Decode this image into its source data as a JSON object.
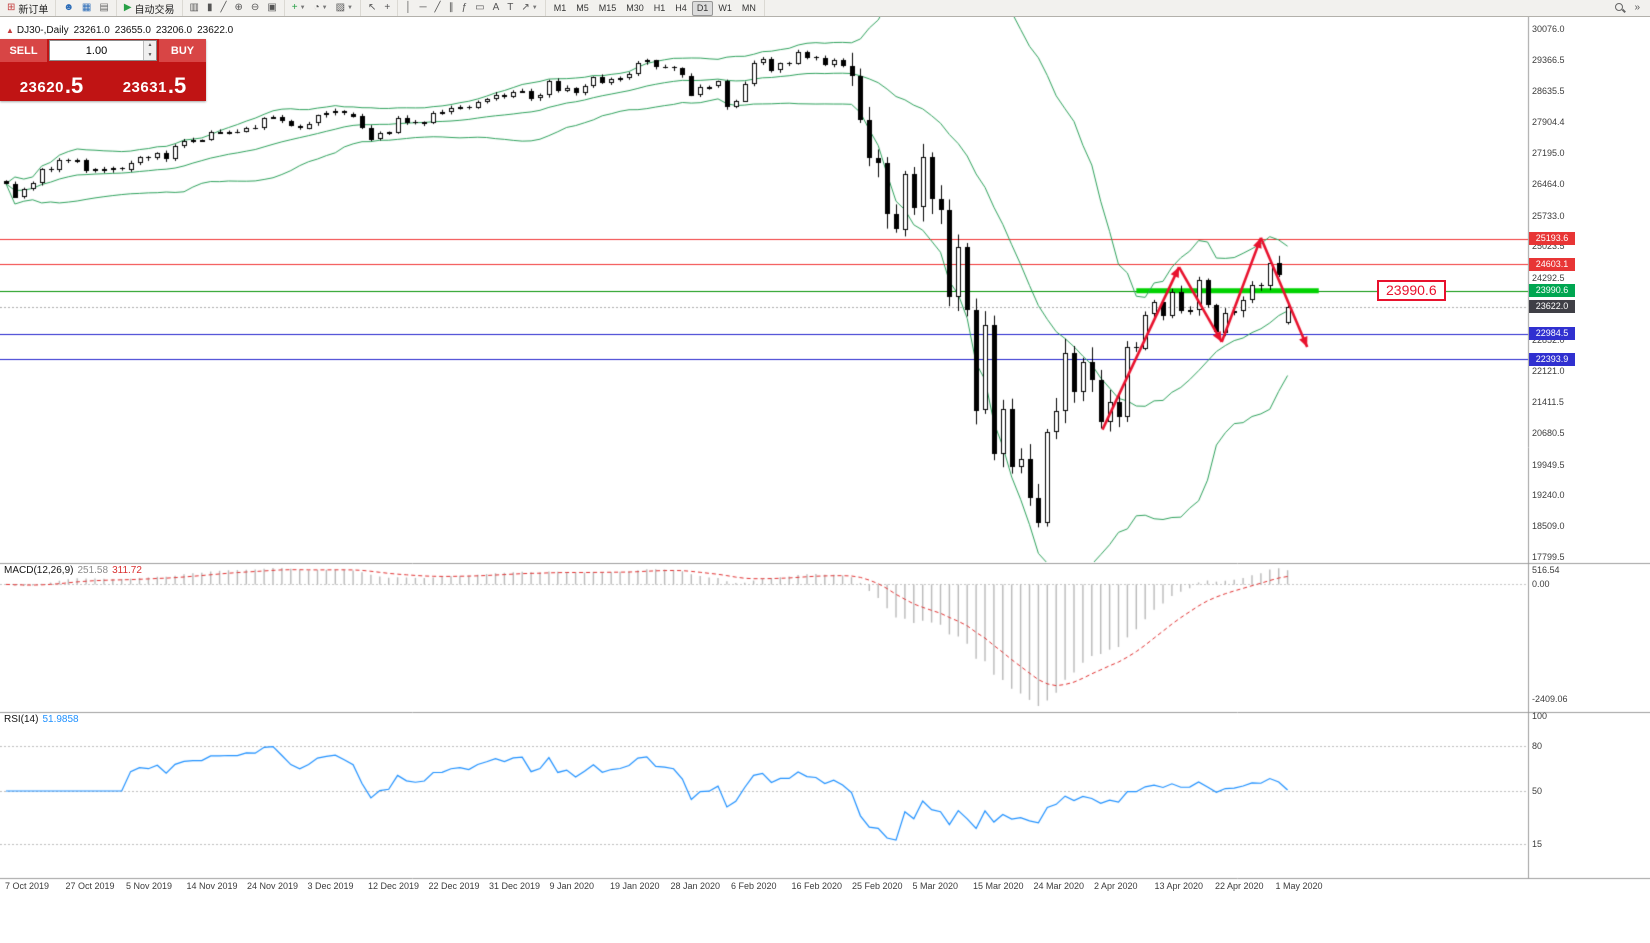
{
  "toolbar": {
    "groups": [
      {
        "items": [
          {
            "name": "new-order-button",
            "glyph": "⊞",
            "glyph_color": "#c43c3c",
            "label": "新订单"
          }
        ]
      },
      {
        "items": [
          {
            "name": "profile-icon",
            "glyph": "☻",
            "glyph_color": "#2b6cb8"
          },
          {
            "name": "market-watch-icon",
            "glyph": "▦",
            "glyph_color": "#2b6cb8"
          },
          {
            "name": "terminal-icon",
            "glyph": "▤",
            "glyph_color": "#6a6a6a"
          }
        ]
      },
      {
        "items": [
          {
            "name": "autotrade-button",
            "glyph": "▶",
            "glyph_color": "#27a046",
            "label": "自动交易"
          }
        ]
      },
      {
        "items": [
          {
            "name": "bar-chart-icon",
            "glyph": "▥"
          },
          {
            "name": "candlestick-chart-icon",
            "glyph": "▮"
          },
          {
            "name": "line-chart-icon",
            "glyph": "╱"
          },
          {
            "name": "zoom-in-icon",
            "glyph": "⊕"
          },
          {
            "name": "zoom-out-icon",
            "glyph": "⊖"
          },
          {
            "name": "tile-windows-icon",
            "glyph": "▣"
          }
        ]
      },
      {
        "items": [
          {
            "name": "indicators-button",
            "glyph": "+",
            "glyph_color": "#27a046",
            "dropdown": true
          },
          {
            "name": "periods-button",
            "glyph": "◔",
            "dropdown": true
          },
          {
            "name": "templates-button",
            "glyph": "▨",
            "dropdown": true
          }
        ]
      },
      {
        "items": [
          {
            "name": "cursor-icon",
            "glyph": "↖"
          },
          {
            "name": "crosshair-icon",
            "glyph": "+"
          }
        ]
      },
      {
        "items": [
          {
            "name": "vertical-line-icon",
            "glyph": "│"
          },
          {
            "name": "horizontal-line-icon",
            "glyph": "─"
          },
          {
            "name": "trendline-icon",
            "glyph": "╱"
          },
          {
            "name": "channel-icon",
            "glyph": "∥"
          },
          {
            "name": "fibonacci-icon",
            "glyph": "ƒ"
          },
          {
            "name": "shapes-icon",
            "glyph": "▭"
          },
          {
            "name": "text-icon",
            "glyph": "A"
          },
          {
            "name": "text-label-icon",
            "glyph": "T"
          },
          {
            "name": "arrow-objects-icon",
            "glyph": "↗",
            "dropdown": true
          }
        ]
      }
    ],
    "timeframes": [
      {
        "label": "M1"
      },
      {
        "label": "M5"
      },
      {
        "label": "M15"
      },
      {
        "label": "M30"
      },
      {
        "label": "H1"
      },
      {
        "label": "H4"
      },
      {
        "label": "D1",
        "active": true
      },
      {
        "label": "W1"
      },
      {
        "label": "MN"
      }
    ],
    "right_items": [
      {
        "name": "quick-search-icon",
        "type": "mag"
      },
      {
        "name": "toolbar-overflow-chevron",
        "glyph": "»"
      }
    ]
  },
  "chart_header": {
    "icon": "▲",
    "symbol": "DJ30-,Daily",
    "open": "23261.0",
    "high": "23655.0",
    "low": "23206.0",
    "close": "23622.0"
  },
  "trade_panel": {
    "sell_label": "SELL",
    "buy_label": "BUY",
    "volume": "1.00",
    "sell_price_main": "23620",
    "sell_price_frac": ".5",
    "buy_price_main": "23631",
    "buy_price_frac": ".5"
  },
  "price_axis": {
    "max": 30076.0,
    "min": 17799.5,
    "labels": [
      "30076.0",
      "29366.5",
      "28635.5",
      "27904.4",
      "27195.0",
      "26464.0",
      "25733.0",
      "25023.5",
      "24292.5",
      "23561.5",
      "22852.0",
      "22121.0",
      "21411.5",
      "20680.5",
      "19949.5",
      "19240.0",
      "18509.0",
      "17799.5"
    ]
  },
  "levels": [
    {
      "price": 25193.6,
      "label": "25193.6",
      "line_color": "#f03030",
      "badge_color": "#e83535",
      "style": "solid"
    },
    {
      "price": 24603.1,
      "label": "24603.1",
      "line_color": "#f03030",
      "badge_color": "#e83535",
      "style": "solid"
    },
    {
      "price": 23990.6,
      "label": "23990.6",
      "line_color": "#009000",
      "badge_color": "#00a651",
      "style": "solid"
    },
    {
      "price": 23622.0,
      "label": "23622.0",
      "line_color": "#ababab",
      "badge_color": "#3f3f46",
      "style": "dot"
    },
    {
      "price": 22984.5,
      "label": "22984.5",
      "line_color": "#2020cc",
      "badge_color": "#3030d0",
      "style": "solid"
    },
    {
      "price": 22393.9,
      "label": "22393.9",
      "line_color": "#2020cc",
      "badge_color": "#3030d0",
      "style": "solid"
    }
  ],
  "macd": {
    "label": "MACD(12,26,9)",
    "value_main": "251.58",
    "value_signal": "311.72",
    "axis": [
      "516.54",
      "0.00",
      "-2409.06"
    ],
    "max": 516.54,
    "min": -2409.06
  },
  "rsi": {
    "label": "RSI(14)",
    "value": "51.9858",
    "axis": [
      {
        "text": "100",
        "value": 100
      },
      {
        "text": "80",
        "value": 80
      },
      {
        "text": "50",
        "value": 50
      },
      {
        "text": "15",
        "value": 15
      }
    ],
    "levels_dashed": [
      80,
      50,
      15
    ]
  },
  "time_axis": [
    "7 Oct 2019",
    "27 Oct 2019",
    "5 Nov 2019",
    "14 Nov 2019",
    "24 Nov 2019",
    "3 Dec 2019",
    "12 Dec 2019",
    "22 Dec 2019",
    "31 Dec 2019",
    "9 Jan 2020",
    "19 Jan 2020",
    "28 Jan 2020",
    "6 Feb 2020",
    "16 Feb 2020",
    "25 Feb 2020",
    "5 Mar 2020",
    "15 Mar 2020",
    "24 Mar 2020",
    "2 Apr 2020",
    "13 Apr 2020",
    "22 Apr 2020",
    "1 May 2020"
  ],
  "annotations": {
    "support_zone": {
      "price": 23990.6,
      "from_bar": 127,
      "to_bar": 147.5,
      "color": "#00d200",
      "thickness": 5
    },
    "trend_arrows": {
      "color": "#e8112d",
      "points_bar_price": [
        [
          123.2,
          20760
        ],
        [
          131.8,
          24540
        ],
        [
          136.6,
          22800
        ],
        [
          141.0,
          25220
        ],
        [
          146.2,
          22680
        ]
      ]
    },
    "callout": {
      "text": "23990.6",
      "x": 1377,
      "y_price": 23990.6
    }
  },
  "chart_data": {
    "type": "candlestick",
    "symbol": "DJ30-",
    "timeframe": "Daily",
    "indicators": [
      "Bollinger Bands(20,2)",
      "MACD(12,26,9)",
      "RSI(14)"
    ],
    "ylim": [
      17799.5,
      30076.0
    ],
    "closes": [
      26478,
      26164,
      26346,
      26496,
      26816,
      26787,
      27024,
      27001,
      27025,
      26770,
      26827,
      26788,
      26833,
      26805,
      26958,
      27090,
      27071,
      27186,
      27046,
      27347,
      27462,
      27492,
      27493,
      27674,
      27681,
      27691,
      27690,
      27783,
      27781,
      28004,
      28036,
      27934,
      27821,
      27766,
      27875,
      28066,
      28121,
      28164,
      28110,
      28051,
      27783,
      27502,
      27649,
      27677,
      28015,
      27909,
      27881,
      27911,
      28132,
      28135,
      28235,
      28267,
      28239,
      28376,
      28455,
      28551,
      28515,
      28621,
      28645,
      28462,
      28538,
      28869,
      28635,
      28703,
      28583,
      28745,
      28957,
      28824,
      28907,
      28939,
      29030,
      29297,
      29348,
      29196,
      29186,
      29160,
      28990,
      28536,
      28723,
      28734,
      28859,
      28256,
      28400,
      28808,
      29291,
      29380,
      29103,
      29277,
      29276,
      29551,
      29423,
      29398,
      29232,
      29348,
      29220,
      28992,
      27961,
      27081,
      26958,
      25767,
      25409,
      26703,
      25917,
      27090,
      26121,
      25865,
      23851,
      25018,
      23553,
      21200,
      23185,
      20188,
      21237,
      19899,
      20087,
      19174,
      18592,
      20705,
      21200,
      22552,
      21637,
      22327,
      21917,
      20944,
      21413,
      21053,
      22680,
      22654,
      23434,
      23719,
      23391,
      23950,
      23505,
      23538,
      24242,
      23651,
      23019,
      23476,
      23516,
      23775,
      24134,
      24101,
      24634,
      24346,
      23622
    ],
    "last_bar": {
      "open": 23261.0,
      "high": 23655.0,
      "low": 23206.0,
      "close": 23622.0
    }
  }
}
